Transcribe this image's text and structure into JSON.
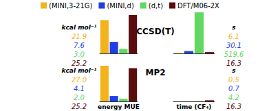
{
  "chart_data": [
    {
      "type": "bar",
      "title": "CCSD(T)",
      "unit": "kcal mol⁻¹",
      "legend": "top",
      "categories": [
        "(MINI,3-21G)",
        "(MINI,d)",
        "(d,t)",
        "DFT/M06-2X"
      ],
      "colors": [
        "#f2b31c",
        "#1f3fe6",
        "#62d862",
        "#5a0d0d"
      ],
      "values": [
        21.9,
        7.6,
        3.0,
        25.2
      ],
      "value_labels": [
        "21.9",
        "7.6",
        "3.0",
        "25.2"
      ],
      "ylim": [
        0,
        27.0
      ],
      "tick_labels": false
    },
    {
      "type": "bar",
      "unit": "s",
      "categories": [
        "(MINI,3-21G)",
        "(MINI,d)",
        "(d,t)",
        "DFT/M06-2X"
      ],
      "colors": [
        "#f2b31c",
        "#1f3fe6",
        "#62d862",
        "#5a0d0d"
      ],
      "values": [
        6.1,
        30.1,
        519.6,
        16.3
      ],
      "value_labels": [
        "6.1",
        "30.1",
        "519.6",
        "16.3"
      ],
      "ylim": [
        0,
        519.6
      ],
      "tick_labels": false
    },
    {
      "type": "bar",
      "title": "MP2",
      "unit": "kcal mol⁻¹",
      "x_label": "energy MUE",
      "categories": [
        "(MINI,3-21G)",
        "(MINI,d)",
        "(d,t)",
        "DFT/M06-2X"
      ],
      "colors": [
        "#f2b31c",
        "#1f3fe6",
        "#62d862",
        "#5a0d0d"
      ],
      "values": [
        27.0,
        4.1,
        2.0,
        25.2
      ],
      "value_labels": [
        "27.0",
        "4.1",
        "2.0",
        "25.2"
      ],
      "ylim": [
        0,
        27.0
      ],
      "tick_labels": false
    },
    {
      "type": "bar",
      "unit": "s",
      "x_label": "time (CF₄)",
      "categories": [
        "(MINI,3-21G)",
        "(MINI,d)",
        "(d,t)",
        "DFT/M06-2X"
      ],
      "colors": [
        "#f2b31c",
        "#1f3fe6",
        "#62d862",
        "#5a0d0d"
      ],
      "values": [
        0.5,
        0.7,
        4.2,
        16.3
      ],
      "value_labels": [
        "0.5",
        "0.7",
        "4.2",
        "16.3"
      ],
      "ylim": [
        0,
        519.6
      ],
      "tick_labels": false
    }
  ]
}
